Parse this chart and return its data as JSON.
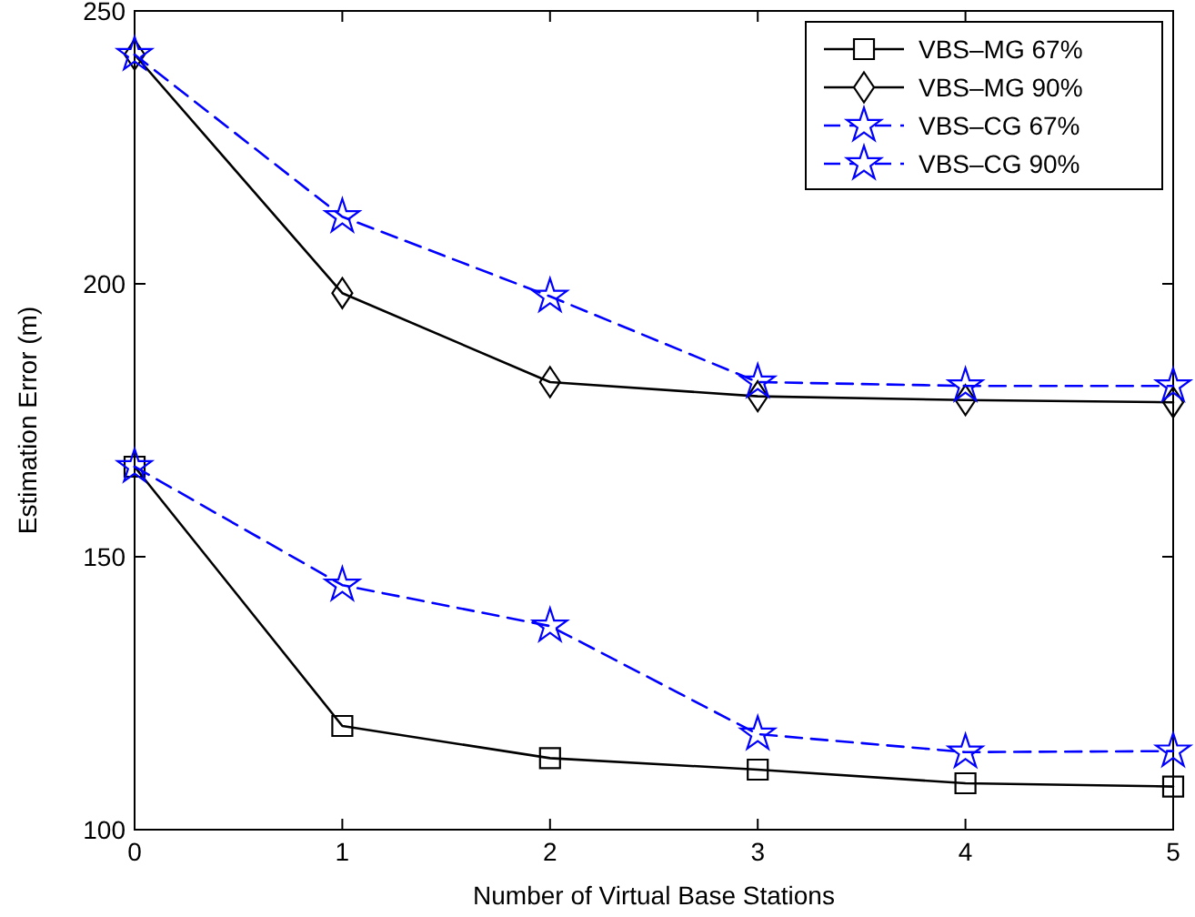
{
  "chart_data": {
    "type": "line",
    "xlabel": "Number of Virtual Base Stations",
    "ylabel": "Estimation Error (m)",
    "x": [
      0,
      1,
      2,
      3,
      4,
      5
    ],
    "xlim": [
      0,
      5
    ],
    "xticks": [
      0,
      1,
      2,
      3,
      4,
      5
    ],
    "ylim": [
      100,
      250
    ],
    "yticks": [
      100,
      150,
      200,
      250
    ],
    "grid": false,
    "legend": "top right",
    "series": [
      {
        "name": "VBS–MG 67%",
        "color": "#000000",
        "marker": "square",
        "line_style": "solid",
        "values": [
          166.5,
          119,
          113.1,
          111,
          108.5,
          107.9
        ]
      },
      {
        "name": "VBS–MG 90%",
        "color": "#000000",
        "marker": "diamond",
        "line_style": "solid",
        "values": [
          242,
          198.3,
          182,
          179.4,
          178.7,
          178.3
        ]
      },
      {
        "name": "VBS–CG 67%",
        "color": "#0000ff",
        "marker": "star",
        "line_style": "dashed",
        "values": [
          166.5,
          144.8,
          137.3,
          117.5,
          114.2,
          114.4
        ]
      },
      {
        "name": "VBS–CG 90%",
        "color": "#0000ff",
        "marker": "star",
        "line_style": "dashed",
        "values": [
          242,
          212.3,
          197.7,
          182,
          181.3,
          181.3
        ]
      }
    ]
  }
}
